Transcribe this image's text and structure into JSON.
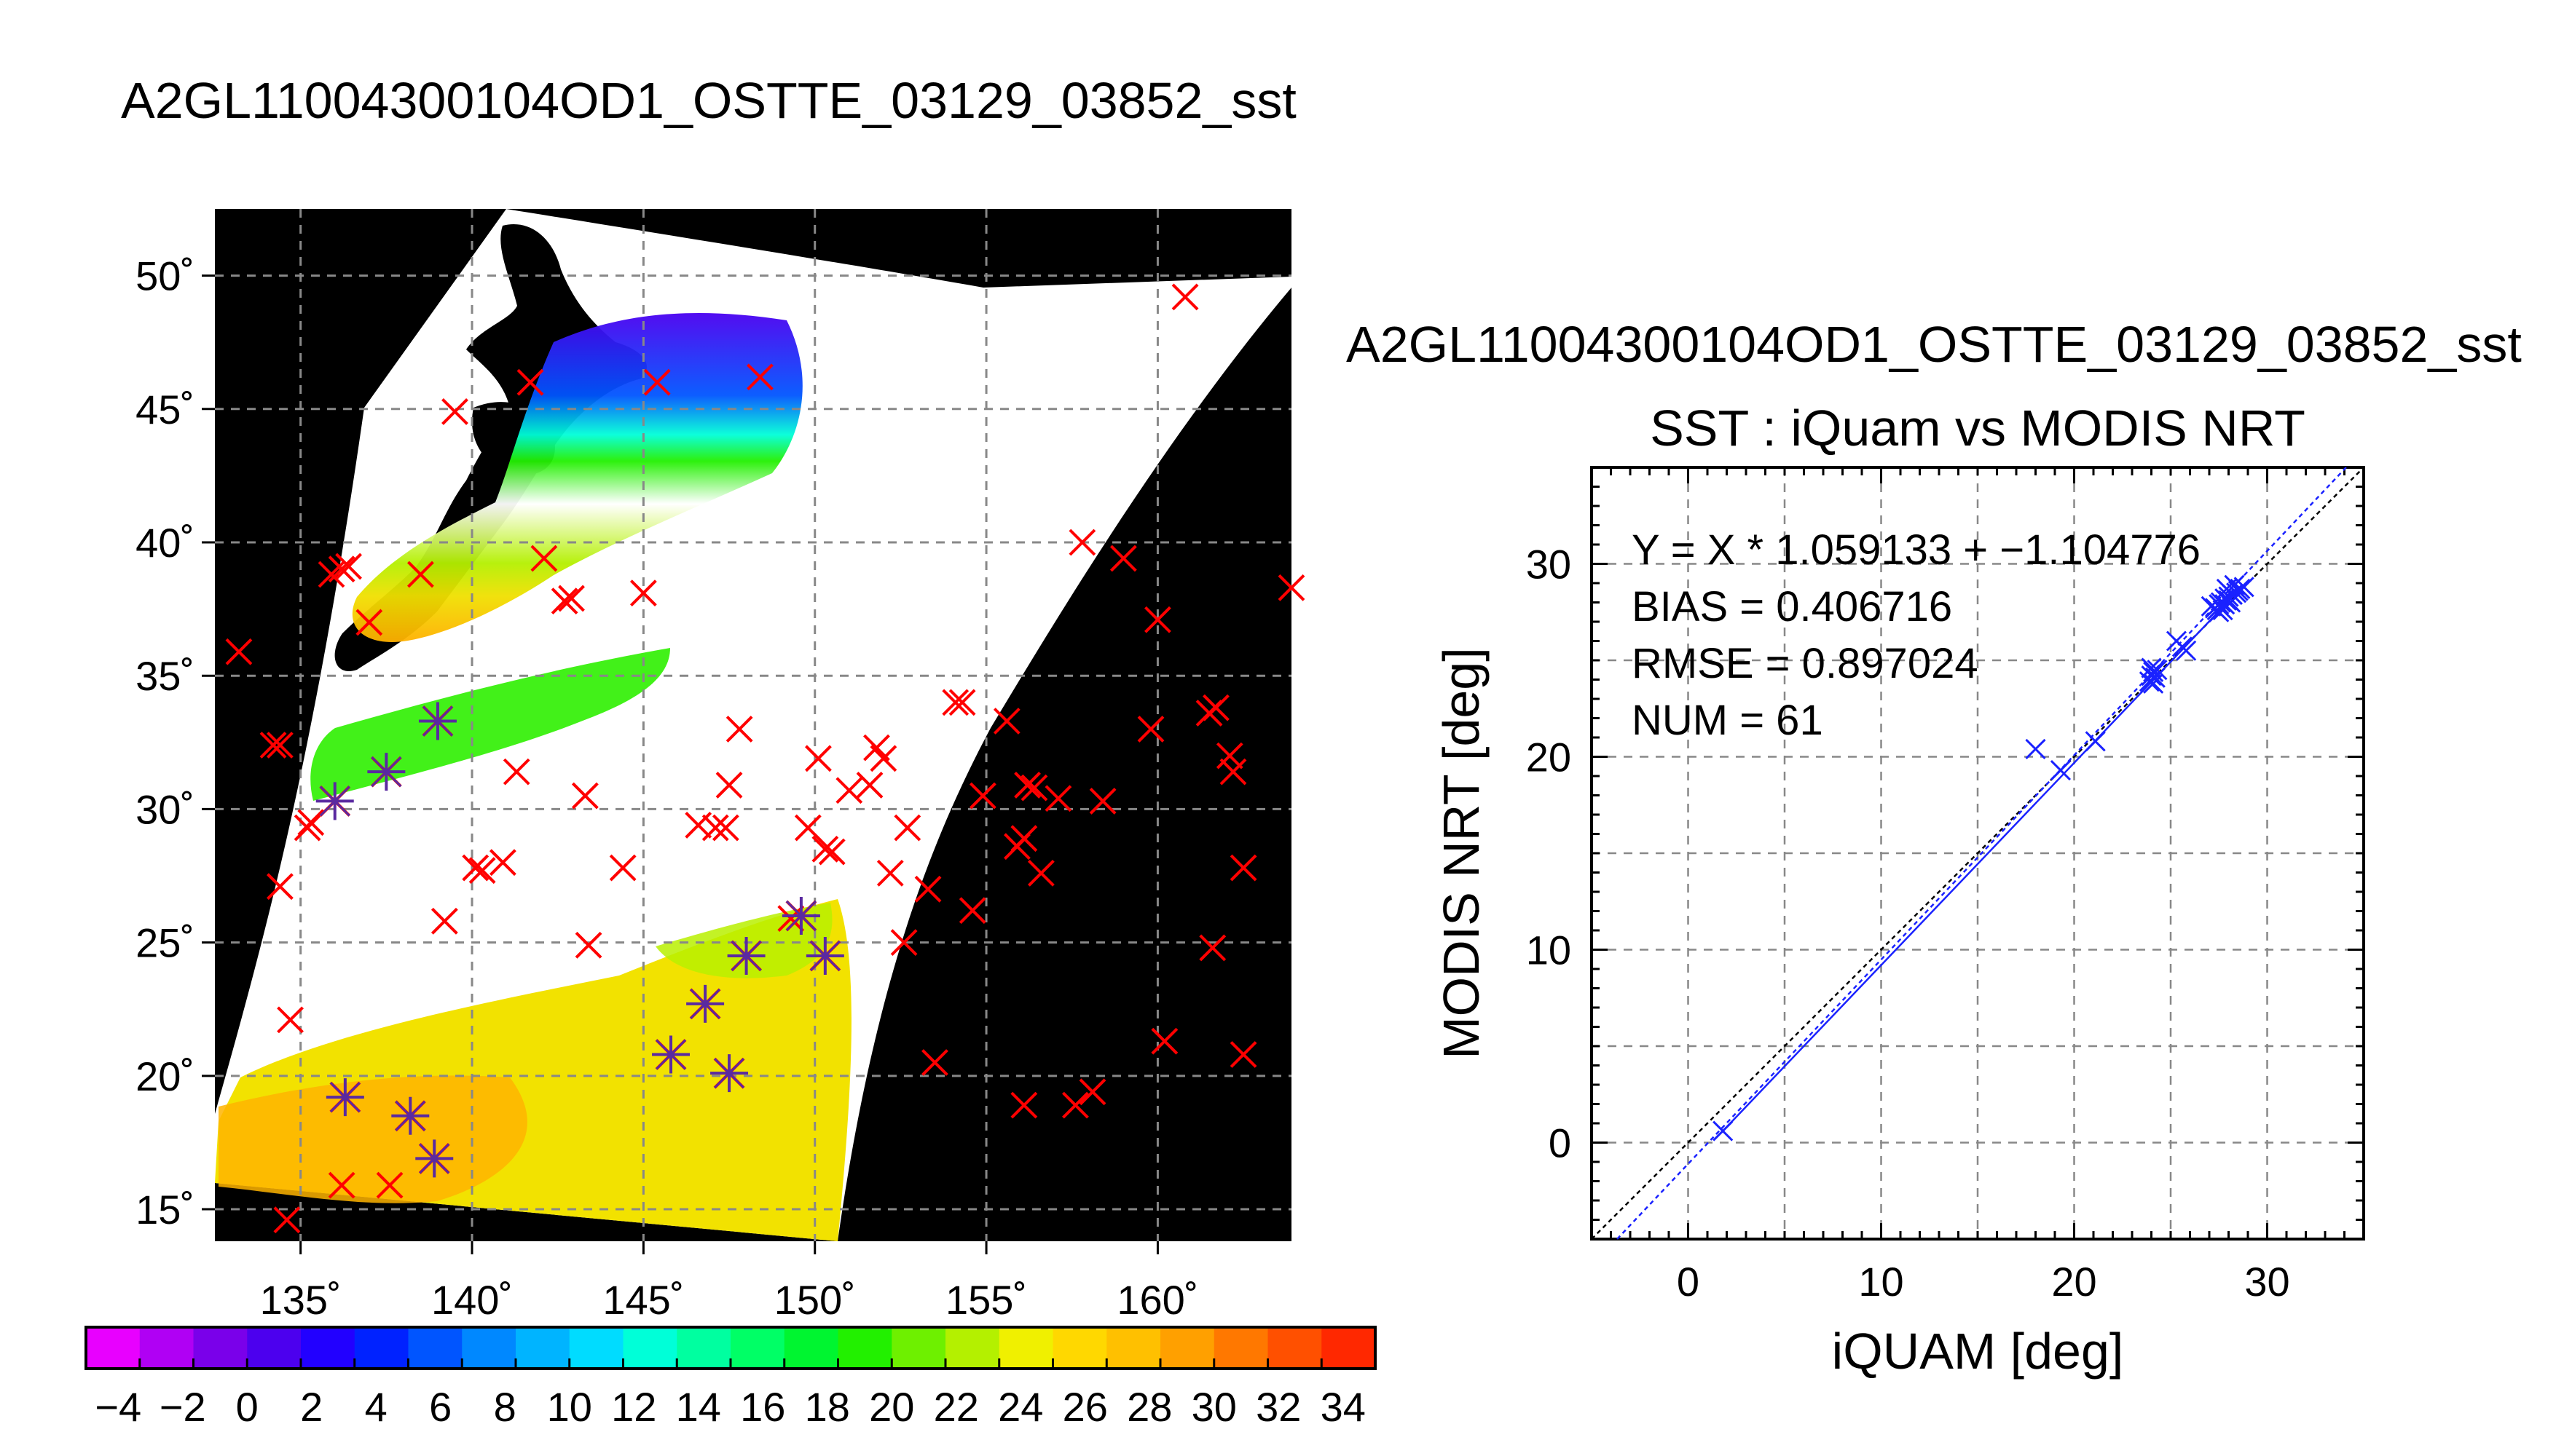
{
  "page_title": "A2GL11004300104OD1_OSTTE_03129_03852_sst",
  "chart_data": [
    {
      "type": "heatmap",
      "title": "",
      "x_tick_labels": [
        "135˚",
        "140˚",
        "145˚",
        "150˚",
        "155˚",
        "160˚"
      ],
      "x_ticks": [
        135,
        140,
        145,
        150,
        155,
        160
      ],
      "y_tick_labels": [
        "15˚",
        "20˚",
        "25˚",
        "30˚",
        "35˚",
        "40˚",
        "45˚",
        "50˚"
      ],
      "y_ticks": [
        15,
        20,
        25,
        30,
        35,
        40,
        45,
        50
      ],
      "xlim": [
        132.5,
        163.9
      ],
      "ylim": [
        13.8,
        52.5
      ],
      "grid": true,
      "colorbar": {
        "labels": [
          "−4",
          "−2",
          "0",
          "2",
          "4",
          "6",
          "8",
          "10",
          "12",
          "14",
          "16",
          "18",
          "20",
          "22",
          "24",
          "26",
          "28",
          "30",
          "32",
          "34"
        ],
        "range": [
          -5,
          35
        ],
        "colors": [
          "#e800ff",
          "#b000f4",
          "#7a00ea",
          "#4c00ee",
          "#2200ff",
          "#0022ff",
          "#0055ff",
          "#0088ff",
          "#00b4ff",
          "#00dcff",
          "#00ffd8",
          "#00ffa0",
          "#00ff66",
          "#00f530",
          "#22f000",
          "#6ef000",
          "#b4f000",
          "#f0f000",
          "#ffd800",
          "#ffc000",
          "#ffa000",
          "#ff7800",
          "#ff5000",
          "#ff2800"
        ]
      },
      "matchups_blue": [
        [
          136,
          30.3
        ],
        [
          137.5,
          31.4
        ],
        [
          139,
          33.3
        ],
        [
          136.3,
          19.2
        ],
        [
          138.2,
          18.5
        ],
        [
          138.9,
          16.9
        ],
        [
          145.8,
          20.8
        ],
        [
          146.8,
          22.7
        ],
        [
          147.5,
          20.1
        ],
        [
          148,
          24.5
        ],
        [
          149.6,
          26
        ],
        [
          150.3,
          24.5
        ]
      ],
      "matchups_red": [
        [
          133.2,
          35.9
        ],
        [
          134.2,
          32.4
        ],
        [
          134.4,
          32.4
        ],
        [
          134.4,
          27.1
        ],
        [
          134.7,
          22.1
        ],
        [
          134.6,
          14.6
        ],
        [
          135.2,
          29.3
        ],
        [
          135.3,
          29.5
        ],
        [
          135.9,
          38.8
        ],
        [
          136.2,
          39
        ],
        [
          136.4,
          39.1
        ],
        [
          137,
          37
        ],
        [
          137.6,
          15.9
        ],
        [
          136.2,
          15.9
        ],
        [
          138.5,
          38.8
        ],
        [
          139.2,
          25.8
        ],
        [
          139.5,
          44.9
        ],
        [
          140.3,
          27.7
        ],
        [
          140.1,
          27.8
        ],
        [
          140.9,
          28
        ],
        [
          141.3,
          31.4
        ],
        [
          141.7,
          46
        ],
        [
          142.1,
          39.4
        ],
        [
          142.7,
          37.8
        ],
        [
          142.9,
          37.9
        ],
        [
          143.3,
          30.5
        ],
        [
          143.4,
          24.9
        ],
        [
          144.4,
          27.8
        ],
        [
          145,
          38.1
        ],
        [
          145.4,
          46
        ],
        [
          146.6,
          29.4
        ],
        [
          147.1,
          29.3
        ],
        [
          147.4,
          29.3
        ],
        [
          147.5,
          30.9
        ],
        [
          147.8,
          33
        ],
        [
          148.4,
          46.2
        ],
        [
          149.3,
          25.9
        ],
        [
          149.8,
          29.3
        ],
        [
          150.1,
          31.9
        ],
        [
          150.3,
          28.5
        ],
        [
          150.5,
          28.4
        ],
        [
          151,
          30.7
        ],
        [
          151.6,
          30.9
        ],
        [
          151.8,
          32.3
        ],
        [
          152,
          31.9
        ],
        [
          152.2,
          27.6
        ],
        [
          152.6,
          25
        ],
        [
          152.7,
          29.3
        ],
        [
          153.3,
          27
        ],
        [
          153.5,
          20.5
        ],
        [
          154.1,
          34
        ],
        [
          154.3,
          34
        ],
        [
          154.6,
          26.2
        ],
        [
          154.9,
          30.5
        ],
        [
          155.6,
          33.3
        ],
        [
          155.9,
          28.6
        ],
        [
          156.1,
          28.9
        ],
        [
          156.2,
          30.9
        ],
        [
          156.4,
          30.8
        ],
        [
          156.1,
          18.9
        ],
        [
          156.6,
          27.6
        ],
        [
          157.1,
          30.4
        ],
        [
          157.6,
          18.9
        ],
        [
          158.1,
          19.4
        ],
        [
          158.4,
          30.3
        ],
        [
          157.8,
          40
        ],
        [
          159,
          39.4
        ],
        [
          159.8,
          33
        ],
        [
          160,
          37.1
        ],
        [
          160.2,
          21.3
        ],
        [
          160.8,
          49.2
        ],
        [
          161.5,
          33.6
        ],
        [
          161.6,
          24.8
        ],
        [
          161.7,
          33.8
        ],
        [
          162.1,
          32
        ],
        [
          162.2,
          31.4
        ],
        [
          162.5,
          27.8
        ],
        [
          162.5,
          20.8
        ],
        [
          163.9,
          38.3
        ]
      ]
    },
    {
      "type": "scatter",
      "overtitle": "A2GL11004300104OD1_OSTTE_03129_03852_sst",
      "title": "SST : iQuam vs MODIS NRT",
      "xlabel": "iQUAM [deg]",
      "ylabel": "MODIS NRT [deg]",
      "xlim": [
        -5,
        35
      ],
      "ylim": [
        -5,
        35
      ],
      "x_ticks": [
        0,
        10,
        20,
        30
      ],
      "x_tick_labels": [
        "0",
        "10",
        "20",
        "30"
      ],
      "y_ticks": [
        0,
        10,
        20,
        30
      ],
      "y_tick_labels": [
        "0",
        "10",
        "20",
        "30"
      ],
      "grid": true,
      "annotations": [
        "Y = X * 1.059133 + −1.104776",
        "BIAS = 0.406716",
        "RMSE = 0.897024",
        "NUM = 61"
      ],
      "fit": {
        "slope": 1.059133,
        "intercept": -1.104776
      },
      "points_x": [
        1.8,
        18,
        19.3,
        21.1,
        23.9,
        24,
        24.1,
        24.2,
        24.3,
        24,
        24.1,
        25.3,
        25.6,
        25.8,
        27.1,
        27.3,
        27.5,
        27.6,
        27.8,
        27.9,
        28,
        28.2,
        28.4,
        28.5,
        28.1,
        27.7,
        27.5,
        27.9,
        28.3,
        28.6,
        28.8,
        28.2,
        27.8,
        28,
        27.4
      ],
      "points_y": [
        0.6,
        20.4,
        19.3,
        20.8,
        23.9,
        24.2,
        24.4,
        24.1,
        24.5,
        24.6,
        23.8,
        26,
        25.7,
        25.5,
        27.8,
        27.7,
        27.9,
        28,
        28.2,
        28.1,
        28.3,
        28.4,
        28.5,
        28.6,
        28,
        27.6,
        27.5,
        28.7,
        28.9,
        28.7,
        28.8,
        28.4,
        27.9,
        28.1,
        27.6
      ]
    }
  ]
}
